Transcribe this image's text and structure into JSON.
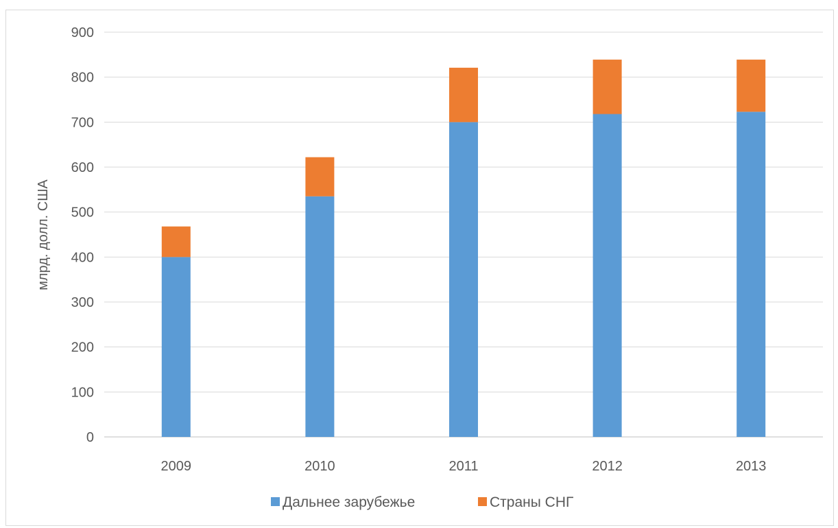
{
  "chart_data": {
    "type": "bar",
    "stacked": true,
    "categories": [
      "2009",
      "2010",
      "2011",
      "2012",
      "2013"
    ],
    "series": [
      {
        "name": "Дальнее зарубежье",
        "color": "#5b9bd5",
        "values": [
          400,
          535,
          700,
          718,
          723
        ]
      },
      {
        "name": "Страны СНГ",
        "color": "#ed7d31",
        "values": [
          68,
          87,
          121,
          121,
          116
        ]
      }
    ],
    "ylabel": "млрд. долл. США",
    "ylim": [
      0,
      900
    ],
    "yticks": [
      0,
      100,
      200,
      300,
      400,
      500,
      600,
      700,
      800,
      900
    ],
    "grid": true,
    "legend_position": "bottom"
  }
}
